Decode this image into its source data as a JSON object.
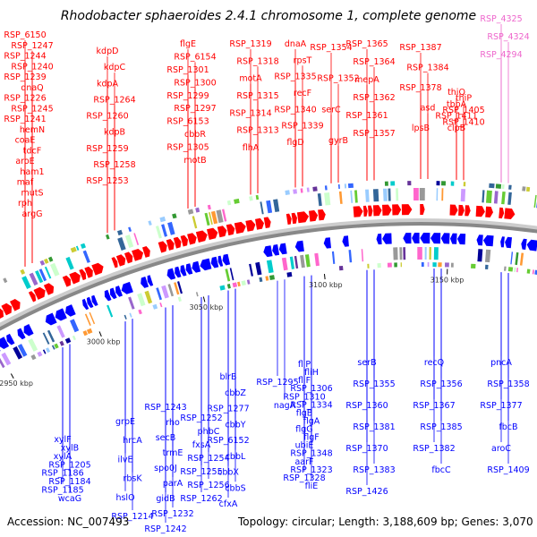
{
  "title": "Rhodobacter sphaeroides 2.4.1 chromosome 1, complete genome",
  "footer": {
    "accession": "Accession: NC_007493",
    "topology": "Topology: circular; Length: 3,188,609 bp; Genes: 3,070"
  },
  "colors": {
    "forward": "#ff0000",
    "reverse": "#0000ff",
    "rna": "#ee66cc",
    "backbone": "#888888"
  },
  "scale_labels": [
    "2950 kbp",
    "3000 kbp",
    "3050 kbp",
    "3100 kbp",
    "3150 kbp"
  ],
  "top_labels": [
    "RSP_6150",
    "RSP_1247",
    "RSP_1244",
    "RSP_1240",
    "RSP_1239",
    "dnaQ",
    "RSP_1226",
    "RSP_1245",
    "RSP_1241",
    "hemN",
    "coaE",
    "tdcF",
    "aroE",
    "ham1",
    "maf",
    "mutS",
    "rph",
    "argG",
    "kdpD",
    "kdpC",
    "kdpA",
    "RSP_1264",
    "RSP_1260",
    "kdpB",
    "RSP_1259",
    "RSP_1258",
    "RSP_1253",
    "flgE",
    "RSP_6154",
    "RSP_1301",
    "RSP_1300",
    "RSP_1299",
    "RSP_1297",
    "RSP_6153",
    "cbbR",
    "RSP_1305",
    "motB",
    "RSP_1319",
    "RSP_1318",
    "motA",
    "RSP_1315",
    "RSP_1314",
    "RSP_1313",
    "flhA",
    "dnaA",
    "rpsT",
    "RSP_1335",
    "recF",
    "RSP_1340",
    "RSP_1339",
    "flgD",
    "RSP_1354",
    "RSP_1352",
    "serC",
    "gyrB",
    "RSP_1365",
    "RSP_1364",
    "mepA",
    "RSP_1362",
    "RSP_1361",
    "RSP_1357",
    "RSP_1387",
    "RSP_1384",
    "RSP_1378",
    "asd",
    "lpsB",
    "thiQ",
    "thiP",
    "tbpA",
    "RSP_1405",
    "RSP_1411",
    "RSP_1410",
    "clpB"
  ],
  "rna_labels": [
    "RSP_4325",
    "RSP_4324",
    "RSP_4294"
  ],
  "bottom_labels": [
    "xylF",
    "xylB",
    "xylA",
    "RSP_1205",
    "RSP_1186",
    "RSP_1184",
    "RSP_1185",
    "wcaG",
    "grpE",
    "hrcA",
    "ilvE",
    "rbsK",
    "hslO",
    "RSP_1214",
    "RSP_1243",
    "rho",
    "secB",
    "trmE",
    "spo0J",
    "parA",
    "gidB",
    "RSP_1232",
    "RSP_1242",
    "RSP_1252",
    "phbC",
    "fxsA",
    "RSP_1254",
    "RSP_1255",
    "RSP_1256",
    "RSP_1262",
    "blrB",
    "cbbZ",
    "RSP_1277",
    "cbbY",
    "RSP_6152",
    "cbbL",
    "cbbX",
    "cbbS",
    "cfxA",
    "RSP_1295",
    "nagA",
    "fliP",
    "fliH",
    "fliF",
    "RSP_1306",
    "RSP_1310",
    "RSP_1334",
    "flgB",
    "flgA",
    "flgG",
    "flgF",
    "ubiE",
    "RSP_1348",
    "aarF",
    "RSP_1323",
    "RSP_1328",
    "fliE",
    "serB",
    "recQ",
    "pncA",
    "RSP_1355",
    "RSP_1356",
    "RSP_1358",
    "RSP_1360",
    "RSP_1367",
    "RSP_1377",
    "RSP_1381",
    "RSP_1385",
    "fbcB",
    "RSP_1370",
    "RSP_1382",
    "aroC",
    "RSP_1383",
    "fbcC",
    "RSP_1409",
    "RSP_1426"
  ]
}
